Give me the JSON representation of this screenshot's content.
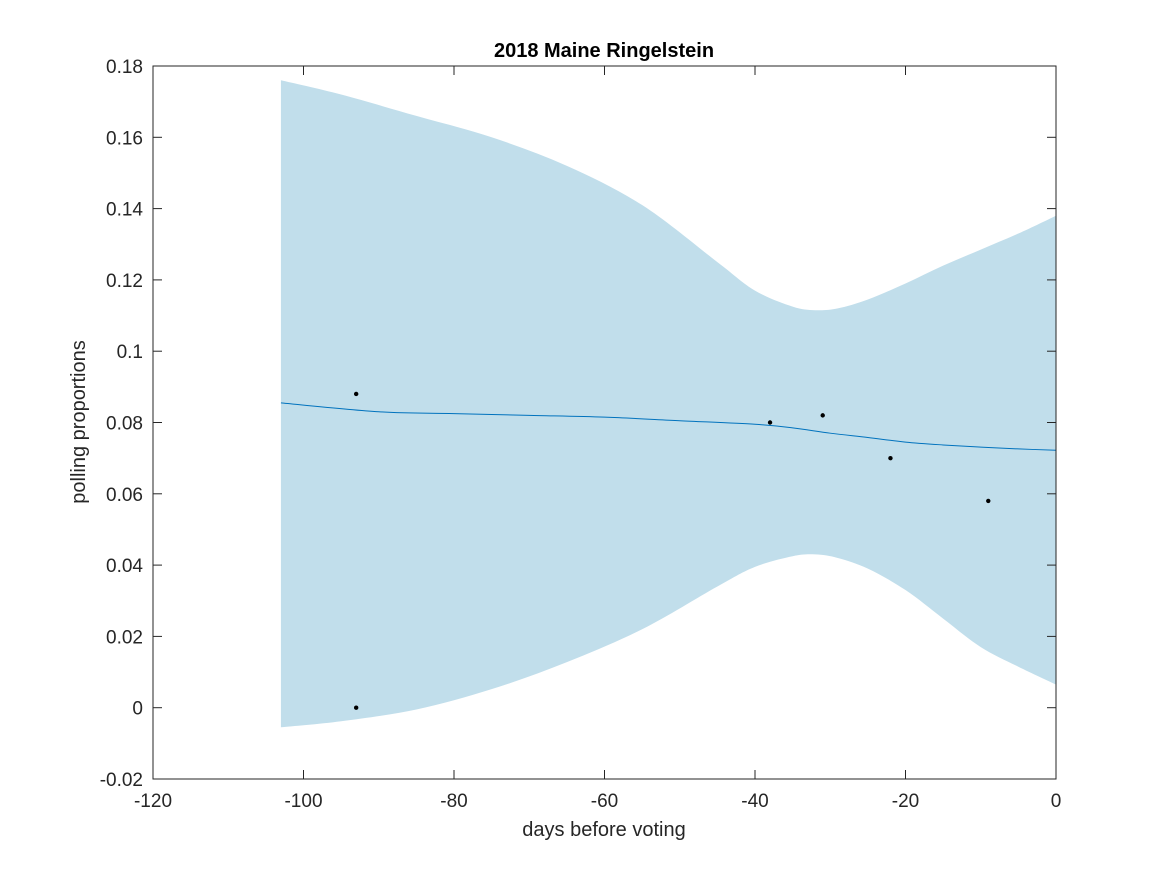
{
  "chart_data": {
    "type": "line",
    "title": "2018 Maine Ringelstein",
    "xlabel": "days before voting",
    "ylabel": "polling proportions",
    "xlim": [
      -120,
      0
    ],
    "ylim": [
      -0.02,
      0.18
    ],
    "xticks": [
      -120,
      -100,
      -80,
      -60,
      -40,
      -20,
      0
    ],
    "xtick_labels": [
      "-120",
      "-100",
      "-80",
      "-60",
      "-40",
      "-20",
      "0"
    ],
    "yticks": [
      -0.02,
      0,
      0.02,
      0.04,
      0.06,
      0.08,
      0.1,
      0.12,
      0.14,
      0.16,
      0.18
    ],
    "ytick_labels": [
      "-0.02",
      "0",
      "0.02",
      "0.04",
      "0.06",
      "0.08",
      "0.1",
      "0.12",
      "0.14",
      "0.16",
      "0.18"
    ],
    "grid": false,
    "colors": {
      "band": "#c1deeb",
      "line": "#0072bd",
      "points": "#000000",
      "axes": "#262626"
    },
    "band": {
      "x": [
        -103,
        -95,
        -85,
        -75,
        -65,
        -55,
        -45,
        -40,
        -35,
        -32,
        -29,
        -25,
        -20,
        -15,
        -10,
        -5,
        0
      ],
      "upper": [
        0.176,
        0.172,
        0.166,
        0.16,
        0.152,
        0.141,
        0.125,
        0.117,
        0.1125,
        0.1115,
        0.112,
        0.1145,
        0.119,
        0.124,
        0.1285,
        0.133,
        0.138
      ],
      "lower": [
        -0.0055,
        -0.0038,
        -0.0005,
        0.0052,
        0.0128,
        0.022,
        0.034,
        0.0395,
        0.0425,
        0.043,
        0.042,
        0.039,
        0.033,
        0.025,
        0.017,
        0.0115,
        0.0065
      ]
    },
    "series": [
      {
        "type": "line",
        "x": [
          -103,
          -90,
          -80,
          -70,
          -60,
          -50,
          -40,
          -35,
          -30,
          -25,
          -20,
          -15,
          -10,
          -5,
          0
        ],
        "values": [
          0.0855,
          0.083,
          0.0825,
          0.082,
          0.0815,
          0.0805,
          0.0795,
          0.0785,
          0.077,
          0.0758,
          0.0745,
          0.0737,
          0.0731,
          0.0726,
          0.0722
        ]
      },
      {
        "type": "scatter",
        "x": [
          -93,
          -93,
          -38,
          -31,
          -22,
          -9
        ],
        "values": [
          0.088,
          0.0,
          0.08,
          0.082,
          0.07,
          0.058
        ]
      }
    ]
  }
}
